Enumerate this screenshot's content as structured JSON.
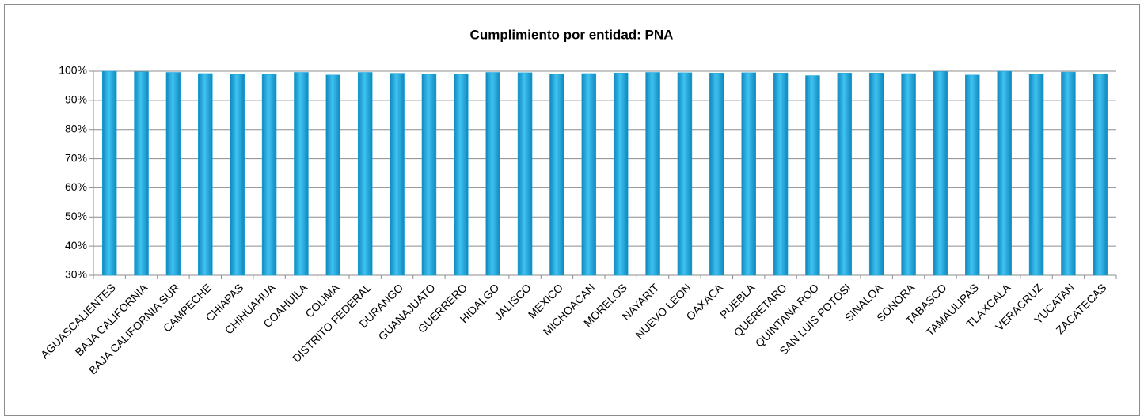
{
  "chart_data": {
    "type": "bar",
    "title": "Cumplimiento por entidad: PNA",
    "categories": [
      "AGUASCALIENTES",
      "BAJA CALIFORNIA",
      "BAJA CALIFORNIA SUR",
      "CAMPECHE",
      "CHIAPAS",
      "CHIHUAHUA",
      "COAHUILA",
      "COLIMA",
      "DISTRITO FEDERAL",
      "DURANGO",
      "GUANAJUATO",
      "GUERRERO",
      "HIDALGO",
      "JALISCO",
      "MEXICO",
      "MICHOACAN",
      "MORELOS",
      "NAYARIT",
      "NUEVO LEON",
      "OAXACA",
      "PUEBLA",
      "QUERETARO",
      "QUINTANA ROO",
      "SAN LUIS POTOSI",
      "SINALOA",
      "SONORA",
      "TABASCO",
      "TAMAULIPAS",
      "TLAXCALA",
      "VERACRUZ",
      "YUCATAN",
      "ZACATECAS"
    ],
    "values": [
      100,
      99.8,
      99.6,
      99.2,
      98.9,
      98.9,
      99.6,
      98.7,
      99.6,
      99.3,
      99.0,
      99.0,
      99.6,
      99.5,
      99.1,
      99.2,
      99.4,
      99.6,
      99.5,
      99.4,
      99.5,
      99.4,
      98.5,
      99.4,
      99.4,
      99.2,
      99.9,
      98.7,
      100,
      99.1,
      99.7,
      99.0
    ],
    "color": "#1ba7de",
    "ylim": [
      30,
      100
    ],
    "yticks": [
      {
        "value": 30,
        "label": "30%"
      },
      {
        "value": 40,
        "label": "40%"
      },
      {
        "value": 50,
        "label": "50%"
      },
      {
        "value": 60,
        "label": "60%"
      },
      {
        "value": 70,
        "label": "70%"
      },
      {
        "value": 80,
        "label": "80%"
      },
      {
        "value": 90,
        "label": "90%"
      },
      {
        "value": 100,
        "label": "100%"
      }
    ],
    "grid": true
  }
}
